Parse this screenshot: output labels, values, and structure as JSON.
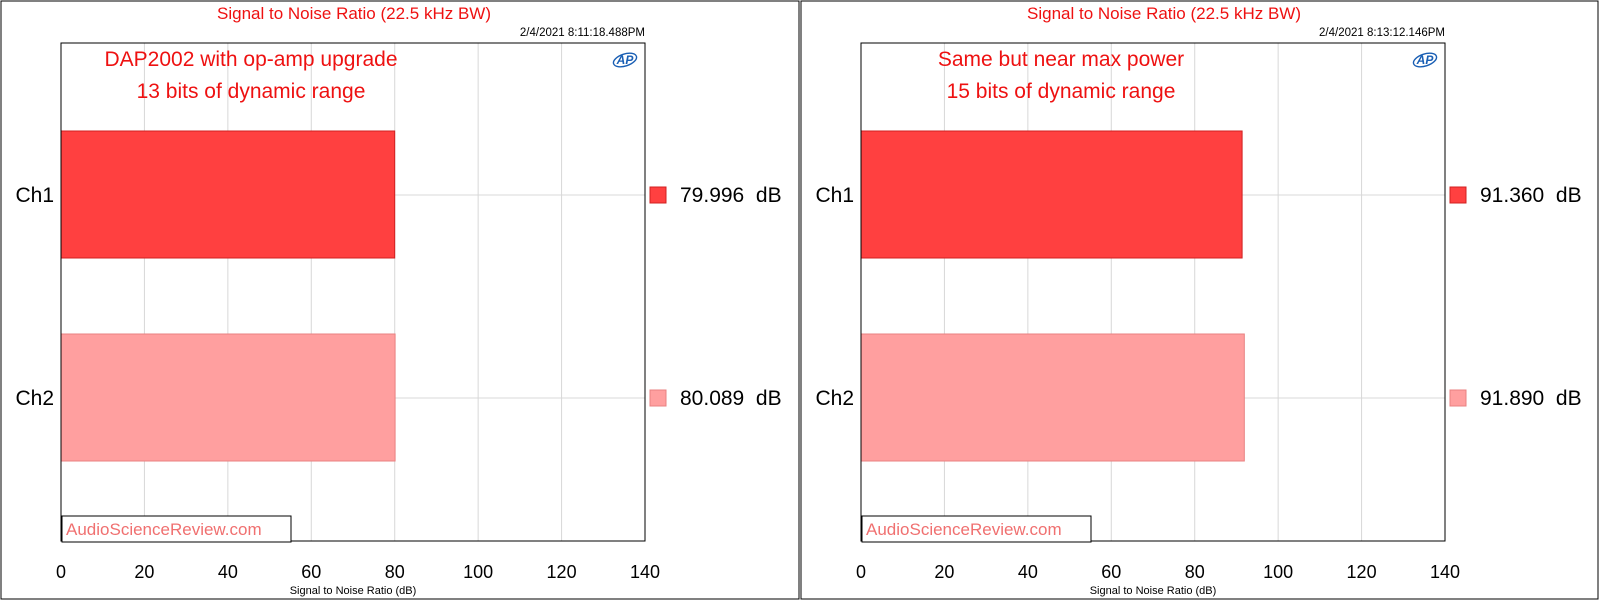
{
  "panels": [
    {
      "title": "Signal to Noise Ratio (22.5 kHz BW)",
      "timestamp": "2/4/2021 8:11:18.488PM",
      "annotation_lines": [
        "DAP2002 with op-amp upgrade",
        "13 bits of dynamic range"
      ],
      "watermark": "AudioScienceReview.com",
      "logo_text": "AP",
      "readouts": [
        "79.996  dB",
        "80.089  dB"
      ]
    },
    {
      "title": "Signal to Noise Ratio (22.5 kHz BW)",
      "timestamp": "2/4/2021 8:13:12.146PM",
      "annotation_lines": [
        "Same but near max power",
        "15 bits of dynamic range"
      ],
      "watermark": "AudioScienceReview.com",
      "logo_text": "AP",
      "readouts": [
        "91.360  dB",
        "91.890  dB"
      ]
    }
  ],
  "colors": {
    "title": "#ee1111",
    "ch1": "#ff4040",
    "ch2": "#ff9f9f",
    "grid": "#d8d8d8",
    "watermark": "#f07070"
  },
  "chart_data": [
    {
      "type": "bar",
      "orientation": "horizontal",
      "title": "Signal to Noise Ratio (22.5 kHz BW)",
      "xlabel": "Signal to Noise Ratio (dB)",
      "ylabel": "",
      "categories": [
        "Ch1",
        "Ch2"
      ],
      "values": [
        79.996,
        80.089
      ],
      "xlim": [
        0,
        140
      ],
      "xticks": [
        "0",
        "20",
        "40",
        "60",
        "80",
        "100",
        "120",
        "140"
      ],
      "grid": true,
      "legend": "right"
    },
    {
      "type": "bar",
      "orientation": "horizontal",
      "title": "Signal to Noise Ratio (22.5 kHz BW)",
      "xlabel": "Signal to Noise Ratio (dB)",
      "ylabel": "",
      "categories": [
        "Ch1",
        "Ch2"
      ],
      "values": [
        91.36,
        91.89
      ],
      "xlim": [
        0,
        140
      ],
      "xticks": [
        "0",
        "20",
        "40",
        "60",
        "80",
        "100",
        "120",
        "140"
      ],
      "grid": true,
      "legend": "right"
    }
  ]
}
